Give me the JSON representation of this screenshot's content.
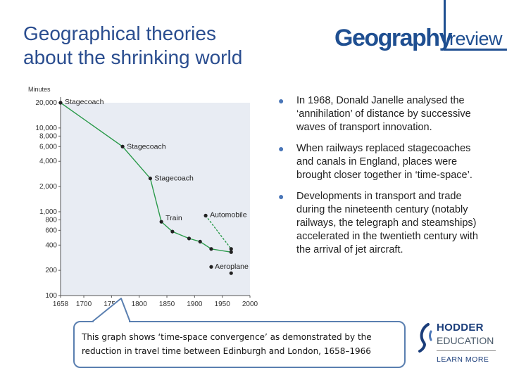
{
  "slide": {
    "title_line1": "Geographical theories",
    "title_line2": "about the shrinking world"
  },
  "logo": {
    "word1": "Geography",
    "word2": "review",
    "accent_color": "#1f4f91"
  },
  "bullets": [
    "In 1968, Donald Janelle analysed the ‘annihilation’ of distance by successive waves of transport innovation.",
    "When railways replaced stagecoaches and canals in England, places were brought closer together in ‘time-space’.",
    "Developments in transport and trade during the nineteenth century (notably railways, the telegraph and steamships) accelerated in the twentieth century with the arrival of jet aircraft."
  ],
  "caption": "This graph shows ‘time-space convergence’ as demonstrated by the reduction in travel time between Edinburgh and London, 1658–1966",
  "publisher": {
    "name": "HODDER",
    "sub": "EDUCATION",
    "tagline": "LEARN MORE",
    "icon": "hodder-swirl-icon"
  },
  "chart_data": {
    "type": "line",
    "ylabel": "Minutes",
    "y_scale": "log",
    "ylim": [
      100,
      20000
    ],
    "xlim": [
      1658,
      2000
    ],
    "x_ticks": [
      "1658",
      "1700",
      "1750",
      "1800",
      "1850",
      "1900",
      "1950",
      "2000"
    ],
    "x_tick_values": [
      1658,
      1700,
      1750,
      1800,
      1850,
      1900,
      1950,
      2000
    ],
    "y_ticks": [
      "20,000",
      "10,000",
      "8,000",
      "6,000",
      "4,000",
      "2,000",
      "1,000",
      "800",
      "600",
      "400",
      "200",
      "100"
    ],
    "y_tick_values": [
      20000,
      10000,
      8000,
      6000,
      4000,
      2000,
      1000,
      800,
      600,
      400,
      200,
      100
    ],
    "series": [
      {
        "name": "",
        "style": "solid",
        "color": "#2a9a4a",
        "points": [
          [
            1658,
            20000
          ],
          [
            1770,
            6000
          ],
          [
            1820,
            2500
          ],
          [
            1840,
            760
          ],
          [
            1860,
            580
          ],
          [
            1890,
            480
          ],
          [
            1910,
            440
          ],
          [
            1930,
            360
          ],
          [
            1966,
            330
          ]
        ]
      },
      {
        "name": "",
        "style": "dashed",
        "color": "#2a9a4a",
        "points": [
          [
            1920,
            900
          ],
          [
            1966,
            360
          ]
        ]
      },
      {
        "name": "",
        "style": "points",
        "color": "#2a9a4a",
        "points": [
          [
            1930,
            220
          ],
          [
            1966,
            185
          ]
        ]
      }
    ],
    "annotations": [
      {
        "text": "Stagecoach",
        "x": 1658,
        "y": 20000
      },
      {
        "text": "Stagecoach",
        "x": 1770,
        "y": 6000
      },
      {
        "text": "Stagecoach",
        "x": 1820,
        "y": 2500
      },
      {
        "text": "Train",
        "x": 1840,
        "y": 760
      },
      {
        "text": "Automobile",
        "x": 1920,
        "y": 900
      },
      {
        "text": "Aeroplane",
        "x": 1930,
        "y": 220
      }
    ],
    "plot_bg": "#e8ecf3"
  }
}
